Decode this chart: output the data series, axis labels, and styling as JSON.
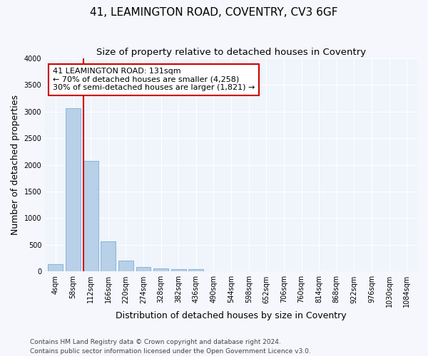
{
  "title": "41, LEAMINGTON ROAD, COVENTRY, CV3 6GF",
  "subtitle": "Size of property relative to detached houses in Coventry",
  "xlabel": "Distribution of detached houses by size in Coventry",
  "ylabel": "Number of detached properties",
  "bin_labels": [
    "4sqm",
    "58sqm",
    "112sqm",
    "166sqm",
    "220sqm",
    "274sqm",
    "328sqm",
    "382sqm",
    "436sqm",
    "490sqm",
    "544sqm",
    "598sqm",
    "652sqm",
    "706sqm",
    "760sqm",
    "814sqm",
    "868sqm",
    "922sqm",
    "976sqm",
    "1030sqm",
    "1084sqm"
  ],
  "bar_heights": [
    140,
    3060,
    2070,
    560,
    200,
    80,
    55,
    40,
    50,
    0,
    0,
    0,
    0,
    0,
    0,
    0,
    0,
    0,
    0,
    0,
    0
  ],
  "bar_color": "#b8d0e8",
  "bar_edge_color": "#7aaed4",
  "ylim": [
    0,
    4000
  ],
  "yticks": [
    0,
    500,
    1000,
    1500,
    2000,
    2500,
    3000,
    3500,
    4000
  ],
  "annotation_text": "41 LEAMINGTON ROAD: 131sqm\n← 70% of detached houses are smaller (4,258)\n30% of semi-detached houses are larger (1,821) →",
  "annotation_box_facecolor": "#ffffff",
  "annotation_box_edgecolor": "#cc0000",
  "property_line_color": "#cc0000",
  "footer_line1": "Contains HM Land Registry data © Crown copyright and database right 2024.",
  "footer_line2": "Contains public sector information licensed under the Open Government Licence v3.0.",
  "fig_facecolor": "#f5f7fc",
  "plot_facecolor": "#f0f4fb",
  "grid_color": "#ffffff",
  "title_fontsize": 11,
  "subtitle_fontsize": 9.5,
  "axis_label_fontsize": 9,
  "tick_fontsize": 7,
  "annotation_fontsize": 8,
  "footer_fontsize": 6.5
}
